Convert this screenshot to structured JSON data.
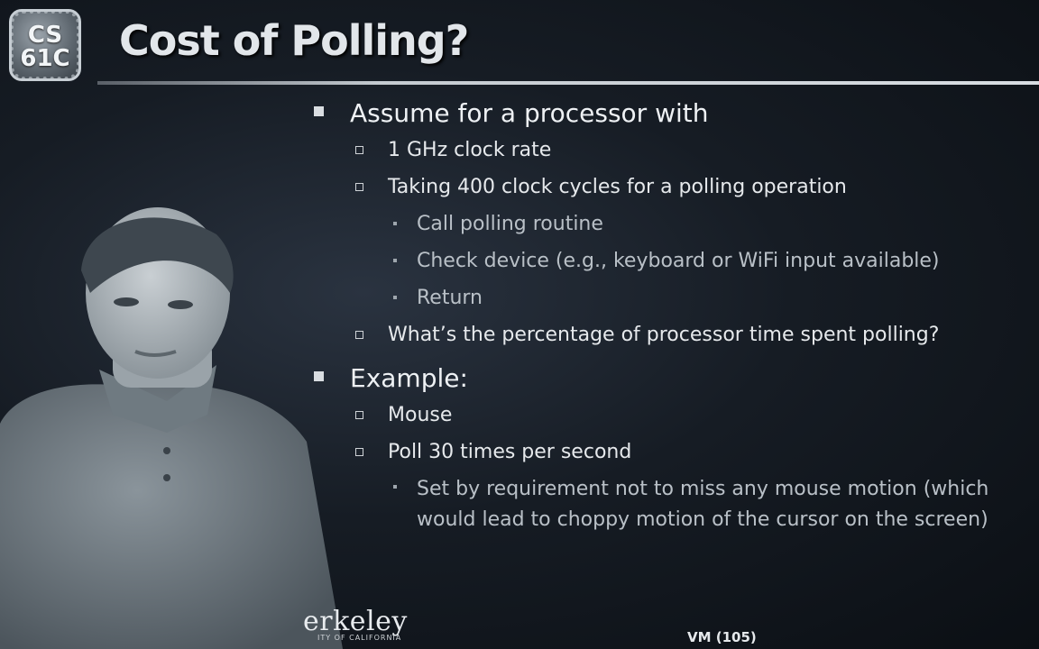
{
  "logo": {
    "line1": "CS",
    "line2": "61C"
  },
  "title": "Cost of Polling?",
  "bullets": [
    {
      "level": 1,
      "text": "Assume for a processor with"
    },
    {
      "level": 2,
      "text": "1 GHz clock rate"
    },
    {
      "level": 2,
      "text": "Taking 400 clock cycles for a polling operation"
    },
    {
      "level": 3,
      "text": "Call polling routine"
    },
    {
      "level": 3,
      "text": "Check device (e.g., keyboard or WiFi input available)"
    },
    {
      "level": 3,
      "text": "Return"
    },
    {
      "level": 2,
      "text": "What’s the percentage of processor time spent polling?"
    },
    {
      "level": 1,
      "text": "Example:"
    },
    {
      "level": 2,
      "text": "Mouse"
    },
    {
      "level": 2,
      "text": "Poll 30 times per second"
    },
    {
      "level": 3,
      "text": "Set by requirement not to miss any mouse motion (which would lead to choppy motion of the cursor on the screen)"
    }
  ],
  "footer": {
    "logo_word": "erkeley",
    "logo_sub": "ITY OF CALIFORNIA",
    "slide_number": "VM (105)"
  },
  "colors": {
    "background": "#11161c",
    "title": "#e2e6ea",
    "text": "#eef1f4",
    "subtext": "#b9c0c7"
  }
}
